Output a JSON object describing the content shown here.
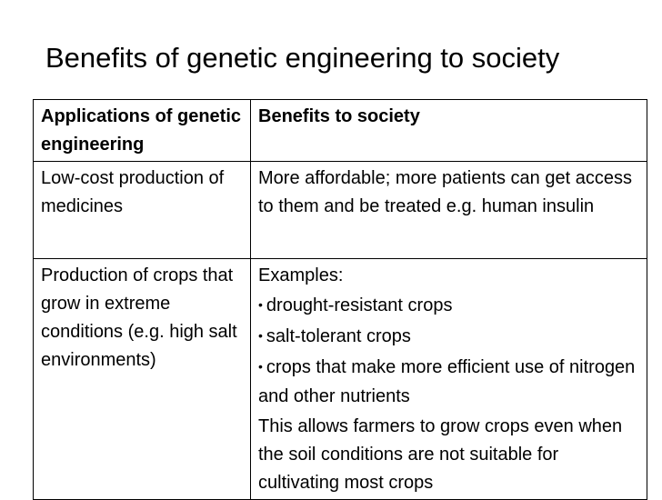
{
  "title": "Benefits of genetic engineering to society",
  "table": {
    "headers": {
      "applications": "Applications of genetic engineering",
      "benefits": "Benefits to society"
    },
    "rows": [
      {
        "application": "Low-cost production of medicines",
        "benefit": "More affordable;  more patients can get access to them and be treated e.g. human insulin"
      },
      {
        "application": "Production of crops that grow in extreme conditions (e.g. high salt environments)",
        "benefit_intro": "Examples:",
        "bullets": [
          "drought-resistant crops",
          "salt-tolerant crops",
          "crops that make more efficient use of nitrogen and other nutrients"
        ],
        "benefit_outro": "This allows farmers to grow crops even when the soil conditions are not suitable for cultivating most crops"
      }
    ]
  }
}
